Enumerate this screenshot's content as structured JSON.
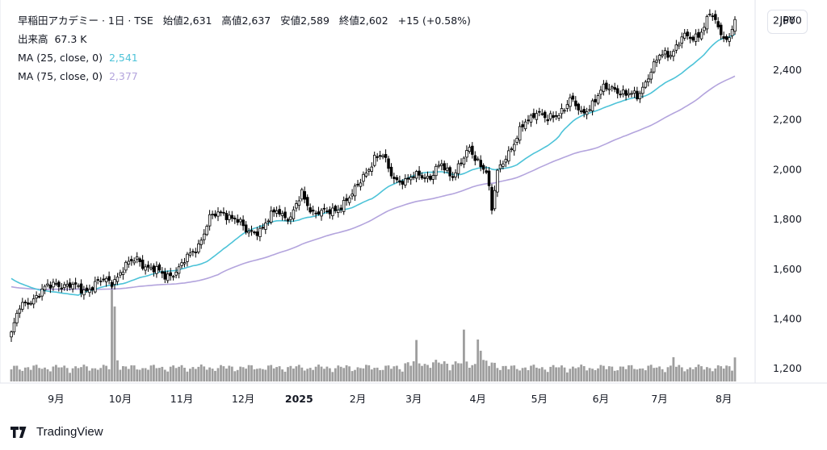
{
  "legend": {
    "title": "早稲田アカデミー · 1日 · TSE",
    "open_label": "始値",
    "open": "2,631",
    "high_label": "高値",
    "high": "2,637",
    "low_label": "安値",
    "low": "2,589",
    "close_label": "終値",
    "close": "2,602",
    "change": "+15 (+0.58%)",
    "volume_label": "出来高",
    "volume": "67.3 K",
    "ma25_label": "MA (25, close, 0)",
    "ma25_value": "2,541",
    "ma75_label": "MA (75, close, 0)",
    "ma75_value": "2,377"
  },
  "currency": "JPY",
  "brand": "TradingView",
  "colors": {
    "ma25": "#4dc3d8",
    "ma75": "#b3a4dd",
    "up": "#ffffff",
    "down": "#000000",
    "volume": "#9e9e9e"
  },
  "chart_data": {
    "type": "candlestick",
    "y_ticks": [
      "2,600",
      "2,400",
      "2,200",
      "2,000",
      "1,800",
      "1,600",
      "1,400",
      "1,200"
    ],
    "y_tick_values": [
      2600,
      2400,
      2200,
      2000,
      1800,
      1600,
      1400,
      1200
    ],
    "ylim": [
      1160,
      2700
    ],
    "x_ticks": [
      "9月",
      "10月",
      "11月",
      "12月",
      "2025",
      "2月",
      "3月",
      "4月",
      "5月",
      "6月",
      "7月",
      "8月"
    ],
    "x_tick_bold": [
      false,
      false,
      false,
      false,
      true,
      false,
      false,
      false,
      false,
      false,
      false,
      false
    ],
    "x_tick_day_index": [
      16,
      39,
      61,
      83,
      103,
      124,
      144,
      167,
      189,
      211,
      232,
      255
    ],
    "days": 260,
    "close_anchors": [
      [
        0,
        1340
      ],
      [
        3,
        1440
      ],
      [
        6,
        1470
      ],
      [
        10,
        1500
      ],
      [
        16,
        1545
      ],
      [
        22,
        1525
      ],
      [
        26,
        1515
      ],
      [
        31,
        1545
      ],
      [
        36,
        1550
      ],
      [
        40,
        1600
      ],
      [
        45,
        1640
      ],
      [
        50,
        1600
      ],
      [
        55,
        1570
      ],
      [
        60,
        1600
      ],
      [
        63,
        1640
      ],
      [
        67,
        1700
      ],
      [
        71,
        1800
      ],
      [
        76,
        1830
      ],
      [
        80,
        1800
      ],
      [
        84,
        1750
      ],
      [
        90,
        1760
      ],
      [
        95,
        1840
      ],
      [
        100,
        1800
      ],
      [
        104,
        1900
      ],
      [
        108,
        1830
      ],
      [
        113,
        1820
      ],
      [
        117,
        1850
      ],
      [
        122,
        1890
      ],
      [
        126,
        1980
      ],
      [
        130,
        2040
      ],
      [
        133,
        2050
      ],
      [
        137,
        1970
      ],
      [
        141,
        1940
      ],
      [
        146,
        1990
      ],
      [
        150,
        1960
      ],
      [
        154,
        2020
      ],
      [
        158,
        1980
      ],
      [
        161,
        2020
      ],
      [
        164,
        2080
      ],
      [
        167,
        2040
      ],
      [
        170,
        1990
      ],
      [
        172,
        1830
      ],
      [
        174,
        1990
      ],
      [
        177,
        2060
      ],
      [
        180,
        2100
      ],
      [
        184,
        2190
      ],
      [
        188,
        2240
      ],
      [
        192,
        2190
      ],
      [
        196,
        2230
      ],
      [
        200,
        2280
      ],
      [
        204,
        2220
      ],
      [
        208,
        2270
      ],
      [
        212,
        2320
      ],
      [
        216,
        2330
      ],
      [
        220,
        2300
      ],
      [
        224,
        2290
      ],
      [
        228,
        2380
      ],
      [
        232,
        2450
      ],
      [
        236,
        2470
      ],
      [
        240,
        2530
      ],
      [
        244,
        2520
      ],
      [
        248,
        2580
      ],
      [
        250,
        2630
      ],
      [
        253,
        2560
      ],
      [
        256,
        2520
      ],
      [
        259,
        2602
      ]
    ],
    "volume_spikes": [
      [
        36,
        8.5
      ],
      [
        37,
        5.2
      ],
      [
        38,
        2.1
      ],
      [
        162,
        2.4
      ],
      [
        167,
        2.6
      ],
      [
        168,
        1.8
      ],
      [
        145,
        1.9
      ],
      [
        237,
        1.8
      ],
      [
        259,
        2.2
      ]
    ],
    "ma25_start": 1570,
    "ma75_start": 1530
  }
}
